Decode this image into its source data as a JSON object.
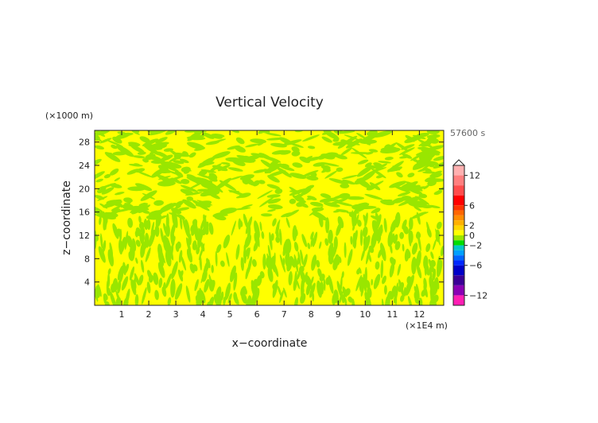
{
  "chart_data": {
    "type": "heatmap",
    "title": "Vertical Velocity",
    "xlabel": "x−coordinate",
    "ylabel": "z−coordinate",
    "x_unit": "(×1E4 m)",
    "y_unit": "(×1000 m)",
    "time_label": "57600 s",
    "xlim": [
      0,
      12.9
    ],
    "ylim": [
      0,
      30
    ],
    "x_ticks": [
      1,
      2,
      3,
      4,
      5,
      6,
      7,
      8,
      9,
      10,
      11,
      12
    ],
    "y_ticks": [
      4,
      8,
      12,
      16,
      20,
      24,
      28
    ],
    "field_colors": {
      "positive_small": "#ffff00",
      "negative_small": "#99e600"
    },
    "colorbar": {
      "range": [
        -14,
        14
      ],
      "tick_values": [
        12,
        6,
        2,
        0,
        -2,
        -6,
        -12
      ],
      "tick_labels": [
        "12",
        "6",
        "2",
        "0",
        "−2",
        "−6",
        "−12"
      ],
      "levels": [
        {
          "from": 12,
          "to": 14,
          "color": "#ffb0b0"
        },
        {
          "from": 10,
          "to": 12,
          "color": "#ff7f7f"
        },
        {
          "from": 8,
          "to": 10,
          "color": "#ff4c4c"
        },
        {
          "from": 6,
          "to": 8,
          "color": "#ff0000"
        },
        {
          "from": 5,
          "to": 6,
          "color": "#ff3300"
        },
        {
          "from": 4,
          "to": 5,
          "color": "#ff6600"
        },
        {
          "from": 3,
          "to": 4,
          "color": "#ff8c00"
        },
        {
          "from": 2,
          "to": 3,
          "color": "#ffb000"
        },
        {
          "from": 1,
          "to": 2,
          "color": "#ffd700"
        },
        {
          "from": 0,
          "to": 1,
          "color": "#ffff00"
        },
        {
          "from": -1,
          "to": 0,
          "color": "#99e600"
        },
        {
          "from": -2,
          "to": -1,
          "color": "#00dd00"
        },
        {
          "from": -3,
          "to": -2,
          "color": "#00c8c8"
        },
        {
          "from": -4,
          "to": -3,
          "color": "#00a0ff"
        },
        {
          "from": -5,
          "to": -4,
          "color": "#0064ff"
        },
        {
          "from": -6,
          "to": -5,
          "color": "#0028ff"
        },
        {
          "from": -8,
          "to": -6,
          "color": "#0000c8"
        },
        {
          "from": -10,
          "to": -8,
          "color": "#3a0096"
        },
        {
          "from": -12,
          "to": -10,
          "color": "#8a00b4"
        },
        {
          "from": -14,
          "to": -12,
          "color": "#ff1eb4"
        }
      ]
    }
  }
}
